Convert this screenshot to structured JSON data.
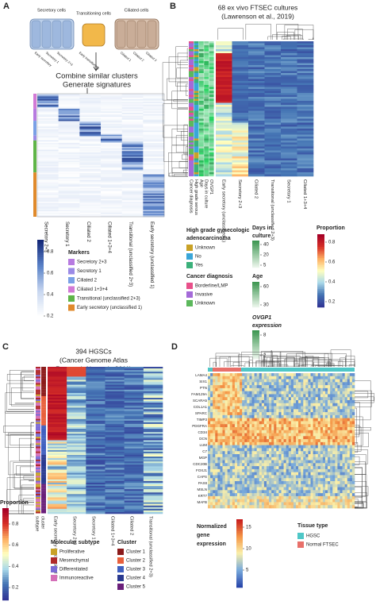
{
  "panel_a": {
    "label": "A",
    "cell_types": [
      "Secretory cells",
      "Transitioning cells",
      "Ciliated cells"
    ],
    "cell_labels": [
      "Early secretory",
      "Secretory 1",
      "Secretory 2+3",
      "Early transitioning",
      "Ciliated 1",
      "Ciliated 2",
      "Ciliated 3"
    ],
    "steps": [
      "Combine similar clusters",
      "Generate signatures"
    ],
    "columns": [
      "Secretory 2+3",
      "Secretory 1",
      "Ciliated 2",
      "Ciliated 1+3+4",
      "Transitional (unclassified 2+3)",
      "Early secretory (unclassified 1)"
    ],
    "colorbar_ticks": [
      0.8,
      0.6,
      0.4,
      0.2
    ],
    "legend_title": "Markers",
    "legend": [
      {
        "label": "Secretory 2+3",
        "color": "#b77be0"
      },
      {
        "label": "Secretory 1",
        "color": "#9b8ae6"
      },
      {
        "label": "Ciliated 2",
        "color": "#7aa0e6"
      },
      {
        "label": "Ciliated 1+3+4",
        "color": "#d27ad6"
      },
      {
        "label": "Transitional (unclassified 2+3)",
        "color": "#5fb548"
      },
      {
        "label": "Early secretory (unclassified 1)",
        "color": "#e08a2c"
      }
    ]
  },
  "panel_b": {
    "label": "B",
    "title": [
      "68 ex vivo FTSEC cultures",
      "(Lawrenson et al., 2019)"
    ],
    "annotations": [
      "Cancer diagnosis",
      "High grade serous",
      "Age",
      "Days in culture",
      "OVGP1"
    ],
    "columns": [
      "Early secretory (unclassified 1)",
      "Secretory 2+3",
      "Ciliated 2",
      "Transitional (unclassified 2+3)",
      "Secretory 1",
      "Ciliated 1+3+4"
    ],
    "hg_title": [
      "High grade gynecologic",
      "adenocarcinoma"
    ],
    "hg_legend": [
      {
        "label": "Unknown",
        "color": "#c9a227"
      },
      {
        "label": "No",
        "color": "#3aa6d8"
      },
      {
        "label": "Yes",
        "color": "#3bb07a"
      }
    ],
    "days_title": [
      "Days in",
      "culture"
    ],
    "days_ticks": [
      40,
      20,
      5
    ],
    "proportion_title": "Proportion",
    "proportion_ticks": [
      0.8,
      0.6,
      0.4,
      0.2
    ],
    "diag_title": "Cancer diagnosis",
    "diag_legend": [
      {
        "label": "Borderline/LMP",
        "color": "#e8508a"
      },
      {
        "label": "Invasive",
        "color": "#a46ad8"
      },
      {
        "label": "Unknown",
        "color": "#5cb85c"
      }
    ],
    "age_title": "Age",
    "age_ticks": [
      60,
      30
    ],
    "ovgp1_title": [
      "OVGP1",
      "expression"
    ],
    "ovgp1_ticks": [
      8,
      2
    ]
  },
  "panel_c": {
    "label": "C",
    "title": [
      "394 HGSCs",
      "(Cancer Genome Atlas",
      "Research Network, 2011)"
    ],
    "annotations": [
      "subtype",
      "cluster"
    ],
    "columns": [
      "Early secretory (unclassified 1)",
      "Secretory 2+3",
      "Secretory 1",
      "Ciliated 1+3+4",
      "Ciliated 2",
      "Transitional (unclassified 2+3)"
    ],
    "proportion_title": "Proportion",
    "proportion_ticks": [
      0.8,
      0.6,
      0.4,
      0.2
    ],
    "subtype_title": "Molecular subtype",
    "subtype_legend": [
      {
        "label": "Proliferative",
        "color": "#c9a227"
      },
      {
        "label": "Mesenchymal",
        "color": "#b02a2a"
      },
      {
        "label": "Differentiated",
        "color": "#7b6bd6"
      },
      {
        "label": "Immunoreactive",
        "color": "#d46fb8"
      }
    ],
    "cluster_title": "Cluster",
    "cluster_legend": [
      {
        "label": "Cluster 1",
        "color": "#8b1a1a"
      },
      {
        "label": "Cluster 2",
        "color": "#e8603c"
      },
      {
        "label": "Cluster 3",
        "color": "#4060c0"
      },
      {
        "label": "Cluster 4",
        "color": "#2a3a90"
      },
      {
        "label": "Cluster 5",
        "color": "#6a1f7a"
      }
    ]
  },
  "panel_d": {
    "label": "D",
    "genes": [
      "LAMA4",
      "SIX1",
      "PTN",
      "FAM129A",
      "SCARA5",
      "COL1A1",
      "SPARC",
      "TIMP3",
      "PDGFRA",
      "CD34",
      "DCN",
      "LUM",
      "C7",
      "MGP",
      "CDC20B",
      "FOXJ1",
      "CAPS",
      "PAX8",
      "MSLN",
      "KRT7",
      "MAFB"
    ],
    "expression_title": [
      "Normalized",
      "gene",
      "expression"
    ],
    "expression_ticks": [
      15,
      10,
      5
    ],
    "tissue_title": "Tissue type",
    "tissue_legend": [
      {
        "label": "HGSC",
        "color": "#4fc7c7"
      },
      {
        "label": "Normal FTSEC",
        "color": "#e8706a"
      }
    ]
  }
}
